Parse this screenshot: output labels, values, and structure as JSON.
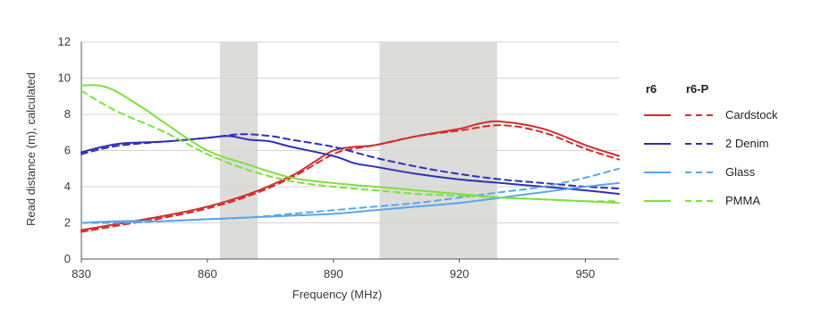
{
  "chart_data": {
    "type": "line",
    "xlabel": "Frequency (MHz)",
    "ylabel": "Read distance (m), calculated",
    "xlim": [
      830,
      958
    ],
    "ylim": [
      0,
      12
    ],
    "x_ticks": [
      830,
      860,
      890,
      920,
      950
    ],
    "y_ticks": [
      0,
      2,
      4,
      6,
      8,
      10,
      12
    ],
    "grid": "horizontal",
    "legend_position": "right",
    "legend_headers": [
      "r6",
      "r6-P"
    ],
    "shaded_bands": [
      [
        863,
        872
      ],
      [
        901,
        929
      ]
    ],
    "series": [
      {
        "name": "Cardstock",
        "variant": "r6",
        "color": "#d62b2b",
        "dash": "solid",
        "points": [
          [
            830,
            1.6
          ],
          [
            840,
            2.0
          ],
          [
            850,
            2.4
          ],
          [
            860,
            2.9
          ],
          [
            870,
            3.6
          ],
          [
            880,
            4.6
          ],
          [
            885,
            5.3
          ],
          [
            890,
            6.0
          ],
          [
            895,
            6.2
          ],
          [
            900,
            6.3
          ],
          [
            910,
            6.8
          ],
          [
            920,
            7.2
          ],
          [
            925,
            7.5
          ],
          [
            930,
            7.6
          ],
          [
            940,
            7.2
          ],
          [
            950,
            6.3
          ],
          [
            958,
            5.7
          ]
        ]
      },
      {
        "name": "Cardstock",
        "variant": "r6-P",
        "color": "#d62b2b",
        "dash": "dashed",
        "points": [
          [
            830,
            1.5
          ],
          [
            840,
            1.9
          ],
          [
            850,
            2.3
          ],
          [
            860,
            2.8
          ],
          [
            870,
            3.5
          ],
          [
            880,
            4.5
          ],
          [
            890,
            5.8
          ],
          [
            895,
            6.1
          ],
          [
            900,
            6.3
          ],
          [
            910,
            6.8
          ],
          [
            920,
            7.1
          ],
          [
            930,
            7.4
          ],
          [
            940,
            7.0
          ],
          [
            950,
            6.1
          ],
          [
            958,
            5.5
          ]
        ]
      },
      {
        "name": "2 Denim",
        "variant": "r6",
        "color": "#2f2fb8",
        "dash": "solid",
        "points": [
          [
            830,
            5.9
          ],
          [
            835,
            6.2
          ],
          [
            840,
            6.4
          ],
          [
            850,
            6.5
          ],
          [
            860,
            6.7
          ],
          [
            865,
            6.8
          ],
          [
            870,
            6.6
          ],
          [
            875,
            6.5
          ],
          [
            880,
            6.2
          ],
          [
            890,
            5.7
          ],
          [
            895,
            5.3
          ],
          [
            900,
            5.1
          ],
          [
            910,
            4.7
          ],
          [
            920,
            4.4
          ],
          [
            930,
            4.2
          ],
          [
            940,
            4.0
          ],
          [
            950,
            3.8
          ],
          [
            958,
            3.6
          ]
        ]
      },
      {
        "name": "2 Denim",
        "variant": "r6-P",
        "color": "#2f2fb8",
        "dash": "dashed",
        "points": [
          [
            830,
            5.8
          ],
          [
            835,
            6.1
          ],
          [
            840,
            6.3
          ],
          [
            850,
            6.5
          ],
          [
            860,
            6.7
          ],
          [
            868,
            6.9
          ],
          [
            875,
            6.8
          ],
          [
            880,
            6.6
          ],
          [
            890,
            6.2
          ],
          [
            900,
            5.6
          ],
          [
            910,
            5.1
          ],
          [
            920,
            4.7
          ],
          [
            930,
            4.4
          ],
          [
            940,
            4.2
          ],
          [
            950,
            4.0
          ],
          [
            958,
            3.9
          ]
        ]
      },
      {
        "name": "Glass",
        "variant": "r6",
        "color": "#5aa6ea",
        "dash": "solid",
        "points": [
          [
            830,
            2.0
          ],
          [
            840,
            2.1
          ],
          [
            850,
            2.1
          ],
          [
            860,
            2.2
          ],
          [
            870,
            2.3
          ],
          [
            880,
            2.4
          ],
          [
            890,
            2.5
          ],
          [
            900,
            2.7
          ],
          [
            910,
            2.9
          ],
          [
            920,
            3.1
          ],
          [
            930,
            3.4
          ],
          [
            940,
            3.7
          ],
          [
            950,
            4.0
          ],
          [
            958,
            4.2
          ]
        ]
      },
      {
        "name": "Glass",
        "variant": "r6-P",
        "color": "#5aa6ea",
        "dash": "dashed",
        "points": [
          [
            830,
            2.0
          ],
          [
            840,
            2.0
          ],
          [
            850,
            2.1
          ],
          [
            860,
            2.2
          ],
          [
            870,
            2.3
          ],
          [
            880,
            2.5
          ],
          [
            890,
            2.7
          ],
          [
            900,
            2.9
          ],
          [
            910,
            3.1
          ],
          [
            920,
            3.4
          ],
          [
            930,
            3.7
          ],
          [
            940,
            4.0
          ],
          [
            950,
            4.5
          ],
          [
            958,
            5.0
          ]
        ]
      },
      {
        "name": "PMMA",
        "variant": "r6",
        "color": "#7ee03e",
        "dash": "solid",
        "points": [
          [
            830,
            9.6
          ],
          [
            834,
            9.6
          ],
          [
            838,
            9.3
          ],
          [
            845,
            8.3
          ],
          [
            850,
            7.5
          ],
          [
            860,
            6.0
          ],
          [
            870,
            5.2
          ],
          [
            880,
            4.5
          ],
          [
            890,
            4.2
          ],
          [
            900,
            4.0
          ],
          [
            910,
            3.8
          ],
          [
            920,
            3.6
          ],
          [
            930,
            3.4
          ],
          [
            940,
            3.3
          ],
          [
            950,
            3.2
          ],
          [
            958,
            3.1
          ]
        ]
      },
      {
        "name": "PMMA",
        "variant": "r6-P",
        "color": "#7ee03e",
        "dash": "dashed",
        "points": [
          [
            830,
            9.3
          ],
          [
            835,
            8.6
          ],
          [
            840,
            8.0
          ],
          [
            850,
            7.0
          ],
          [
            860,
            5.8
          ],
          [
            870,
            4.9
          ],
          [
            880,
            4.3
          ],
          [
            890,
            4.0
          ],
          [
            900,
            3.8
          ],
          [
            910,
            3.6
          ],
          [
            920,
            3.5
          ],
          [
            930,
            3.4
          ],
          [
            940,
            3.3
          ],
          [
            950,
            3.2
          ],
          [
            958,
            3.2
          ]
        ]
      }
    ],
    "legend_entries": [
      "Cardstock",
      "2 Denim",
      "Glass",
      "PMMA"
    ]
  }
}
